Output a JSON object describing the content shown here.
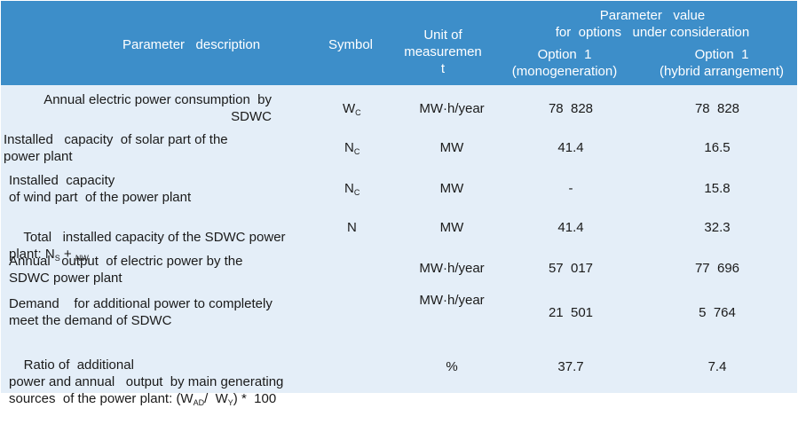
{
  "header": {
    "col_param": "Parameter   description",
    "col_symbol": "Symbol",
    "col_unit": "Unit of\nmeasuremen\nt",
    "col_group": "Parameter   value\nfor  options   under consideration",
    "col_opt1": "Option  1\n(monogeneration)",
    "col_opt2": "Option  1\n(hybrid arrangement)"
  },
  "rows": [
    {
      "desc": "Annual electric power consumption  by\nSDWC",
      "sym_main": "W",
      "sym_sub": "C",
      "unit": "MW·h/year",
      "v1": "78  828",
      "v2": "78  828"
    },
    {
      "desc": "Installed   capacity  of solar part of the\npower plant",
      "sym_main": "N",
      "sym_sub": "C",
      "unit": "MW",
      "v1": "41.4",
      "v2": "16.5"
    },
    {
      "desc": "Installed  capacity\nof wind part  of the power plant",
      "sym_main": "N",
      "sym_sub": "C",
      "unit": "MW",
      "v1": "-",
      "v2": "15.8"
    },
    {
      "desc_line1": "Total   installed capacity of the SDWC power",
      "desc_line2_a": "plant: N",
      "desc_line2_sub1": "S",
      "desc_line2_b": " + ",
      "desc_line2_sub2": "NW",
      "sym_main": "N",
      "unit": "MW",
      "v1": "41.4",
      "v2": "32.3"
    },
    {
      "desc": "Annual   output  of electric power by the\nSDWC power plant",
      "unit": "MW·h/year",
      "v1": "57  017",
      "v2": "77  696"
    },
    {
      "desc": "Demand    for additional power to completely\nmeet the demand of SDWC",
      "unit": "MW·h/year",
      "v1": "21  501",
      "v2": "5  764"
    },
    {
      "desc_line1": "Ratio of  additional",
      "desc_line2": "power and annual   output  by main generating",
      "desc_line3_a": "sources  of the power plant: (W",
      "desc_line3_sub1": "AD",
      "desc_line3_b": "/  W",
      "desc_line3_sub2": "Y",
      "desc_line3_c": ") *  100",
      "unit": "%",
      "v1": "37.7",
      "v2": "7.4"
    }
  ],
  "colors": {
    "header_bg": "#3d8ec9",
    "body_bg": "#e4eef8",
    "header_text": "#ffffff"
  }
}
